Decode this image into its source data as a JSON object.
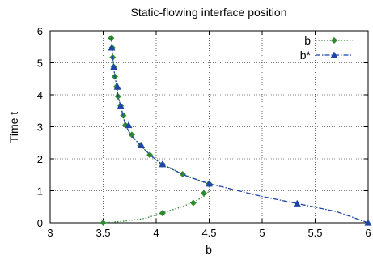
{
  "chart_data": {
    "type": "line",
    "title": "Static-flowing interface position",
    "xlabel": "b",
    "ylabel": "Time t",
    "xlim": [
      3,
      6
    ],
    "ylim": [
      0,
      6
    ],
    "xticks": [
      "3",
      "3.5",
      "4",
      "4.5",
      "5",
      "5.5",
      "6"
    ],
    "xtick_values": [
      3,
      3.5,
      4,
      4.5,
      5,
      5.5,
      6
    ],
    "yticks": [
      "0",
      "1",
      "2",
      "3",
      "4",
      "5",
      "6"
    ],
    "ytick_values": [
      0,
      1,
      2,
      3,
      4,
      5,
      6
    ],
    "grid": true,
    "legend_position": "top-right",
    "series": [
      {
        "name": "b",
        "color": "#2f8a2f",
        "line_style": "dotted",
        "marker": "diamond",
        "line": [
          [
            3.5,
            0
          ],
          [
            3.7,
            0.05
          ],
          [
            3.9,
            0.14
          ],
          [
            4.05,
            0.3
          ],
          [
            4.2,
            0.45
          ],
          [
            4.34,
            0.62
          ],
          [
            4.44,
            0.8
          ],
          [
            4.48,
            0.92
          ],
          [
            4.5,
            1.0
          ],
          [
            4.5,
            1.2
          ],
          [
            4.4,
            1.33
          ],
          [
            4.25,
            1.52
          ],
          [
            4.05,
            1.85
          ],
          [
            3.95,
            2.1
          ],
          [
            3.85,
            2.42
          ],
          [
            3.76,
            2.75
          ],
          [
            3.71,
            3.05
          ],
          [
            3.69,
            3.32
          ],
          [
            3.665,
            3.65
          ],
          [
            3.64,
            3.95
          ],
          [
            3.63,
            4.25
          ],
          [
            3.61,
            4.57
          ],
          [
            3.6,
            4.87
          ],
          [
            3.59,
            5.17
          ],
          [
            3.585,
            5.47
          ],
          [
            3.58,
            5.77
          ]
        ],
        "markers": [
          [
            3.5,
            0
          ],
          [
            4.06,
            0.3
          ],
          [
            4.35,
            0.62
          ],
          [
            4.45,
            0.92
          ],
          [
            4.5,
            1.22
          ],
          [
            4.25,
            1.52
          ],
          [
            4.06,
            1.83
          ],
          [
            3.94,
            2.12
          ],
          [
            3.85,
            2.42
          ],
          [
            3.77,
            2.75
          ],
          [
            3.71,
            3.05
          ],
          [
            3.69,
            3.35
          ],
          [
            3.665,
            3.65
          ],
          [
            3.64,
            3.95
          ],
          [
            3.625,
            4.25
          ],
          [
            3.61,
            4.57
          ],
          [
            3.6,
            4.87
          ],
          [
            3.59,
            5.17
          ],
          [
            3.585,
            5.47
          ],
          [
            3.575,
            5.77
          ]
        ]
      },
      {
        "name": "b*",
        "color": "#1f45a8",
        "line_style": "dash-dot",
        "marker": "triangle",
        "line": [
          [
            6.0,
            0
          ],
          [
            5.7,
            0.35
          ],
          [
            5.33,
            0.6
          ],
          [
            5.0,
            0.82
          ],
          [
            4.75,
            1.02
          ],
          [
            4.5,
            1.22
          ],
          [
            4.3,
            1.44
          ],
          [
            4.05,
            1.83
          ],
          [
            3.95,
            2.1
          ],
          [
            3.85,
            2.42
          ],
          [
            3.76,
            2.75
          ],
          [
            3.71,
            3.05
          ],
          [
            3.69,
            3.32
          ],
          [
            3.665,
            3.65
          ],
          [
            3.64,
            3.95
          ],
          [
            3.63,
            4.25
          ],
          [
            3.61,
            4.57
          ],
          [
            3.6,
            4.87
          ],
          [
            3.59,
            5.17
          ],
          [
            3.585,
            5.47
          ],
          [
            3.58,
            5.77
          ]
        ],
        "markers": [
          [
            6.0,
            0
          ],
          [
            5.33,
            0.6
          ],
          [
            4.5,
            1.22
          ],
          [
            4.06,
            1.83
          ],
          [
            3.86,
            2.42
          ],
          [
            3.74,
            3.05
          ],
          [
            3.665,
            3.65
          ],
          [
            3.635,
            4.25
          ],
          [
            3.6,
            4.87
          ],
          [
            3.58,
            5.47
          ]
        ]
      }
    ]
  }
}
